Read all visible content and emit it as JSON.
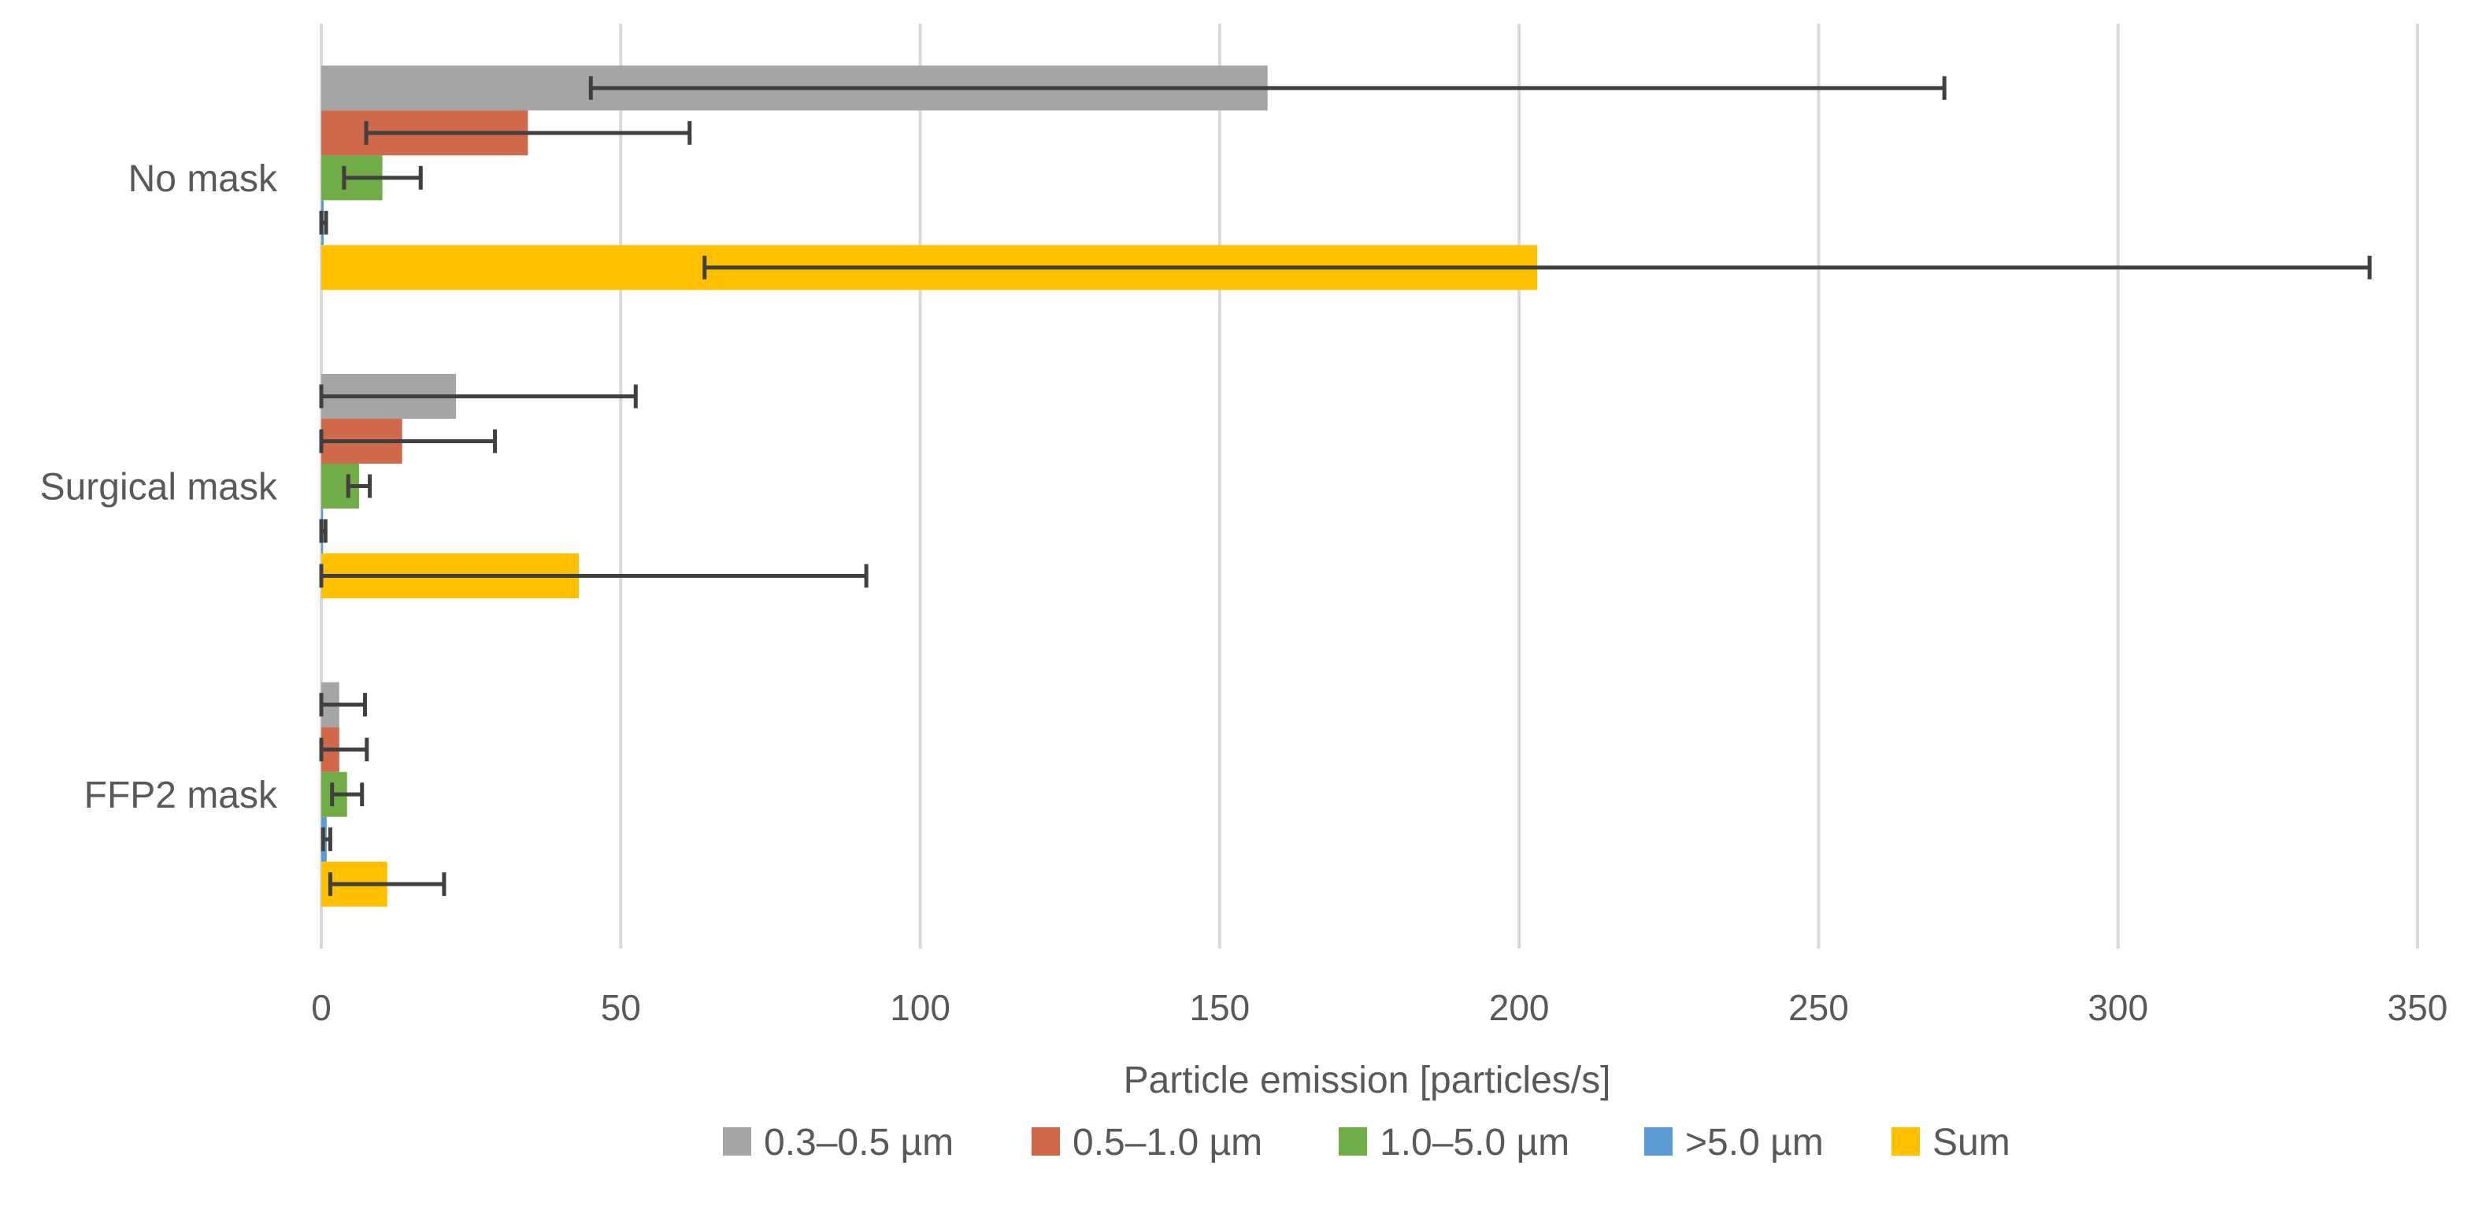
{
  "chart_data": {
    "type": "bar",
    "orientation": "horizontal",
    "title": "",
    "xlabel": "Particle emission [particles/s]",
    "ylabel": "",
    "xlim": [
      0,
      350
    ],
    "x_ticks": [
      "0",
      "50",
      "100",
      "150",
      "200",
      "250",
      "300",
      "350"
    ],
    "grid": "vertical major gridlines",
    "legend_position": "bottom",
    "error_bars": true,
    "categories": [
      "No mask",
      "Surgical mask",
      "FFP2 mask"
    ],
    "series": [
      {
        "name": "0.3–0.5 µm",
        "color": "#A5A5A5",
        "values": [
          158,
          22.5,
          3
        ],
        "errors": [
          113,
          30,
          4.3
        ]
      },
      {
        "name": "0.5–1.0 µm",
        "color": "#D0694A",
        "values": [
          34.5,
          13.5,
          3
        ],
        "errors": [
          27,
          15.5,
          4.6
        ]
      },
      {
        "name": "1.0–5.0 µm",
        "color": "#70AD47",
        "values": [
          10.2,
          6.3,
          4.3
        ],
        "errors": [
          6.4,
          1.8,
          2.5
        ]
      },
      {
        "name": ">5.0 µm",
        "color": "#5B9BD5",
        "values": [
          0.4,
          0.3,
          0.9
        ],
        "errors": [
          0.4,
          0.4,
          0.6
        ]
      },
      {
        "name": "Sum",
        "color": "#FFC000",
        "values": [
          203,
          43,
          11
        ],
        "errors": [
          139,
          48,
          9.5
        ]
      }
    ]
  }
}
